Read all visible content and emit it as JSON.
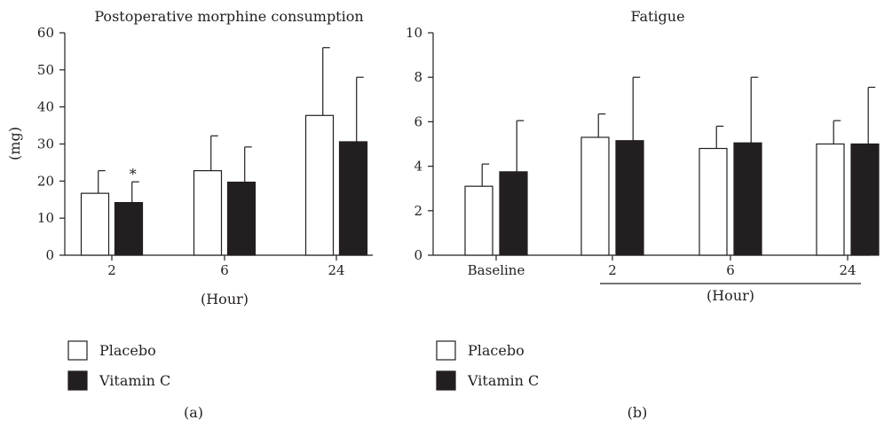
{
  "colors": {
    "placebo": "#ffffff",
    "vitamin_c": "#231f20",
    "outline": "#231f20"
  },
  "chart_data": [
    {
      "type": "bar",
      "panel_label": "(a)",
      "title": "Postoperative morphine consumption",
      "xlabel": "(Hour)",
      "ylabel": "(mg)",
      "ylim": [
        0,
        60
      ],
      "yticks": [
        0,
        10,
        20,
        30,
        40,
        50,
        60
      ],
      "categories": [
        "2",
        "6",
        "24"
      ],
      "series": [
        {
          "name": "Placebo",
          "values": [
            16.7,
            22.8,
            37.7
          ],
          "error": [
            6.1,
            9.4,
            18.3
          ]
        },
        {
          "name": "Vitamin C",
          "values": [
            14.2,
            19.7,
            30.6
          ],
          "error": [
            5.6,
            9.5,
            17.4
          ]
        }
      ],
      "annotations": [
        {
          "category": "2",
          "series": "Vitamin C",
          "text": "*"
        }
      ],
      "legend": {
        "position": "bottom-left",
        "entries": [
          "Placebo",
          "Vitamin C"
        ]
      }
    },
    {
      "type": "bar",
      "panel_label": "(b)",
      "title": "Fatigue",
      "xlabel": "(Hour)",
      "ylabel": "",
      "ylim": [
        0,
        10
      ],
      "yticks": [
        0,
        2,
        4,
        6,
        8,
        10
      ],
      "categories": [
        "Baseline",
        "2",
        "6",
        "24"
      ],
      "series": [
        {
          "name": "Placebo",
          "values": [
            3.1,
            5.3,
            4.8,
            5.0
          ],
          "error": [
            1.0,
            1.05,
            1.0,
            1.05
          ]
        },
        {
          "name": "Vitamin C",
          "values": [
            3.75,
            5.15,
            5.05,
            5.0
          ],
          "error": [
            2.3,
            2.85,
            2.95,
            2.55
          ]
        }
      ],
      "legend": {
        "position": "bottom-left",
        "entries": [
          "Placebo",
          "Vitamin C"
        ]
      }
    }
  ]
}
